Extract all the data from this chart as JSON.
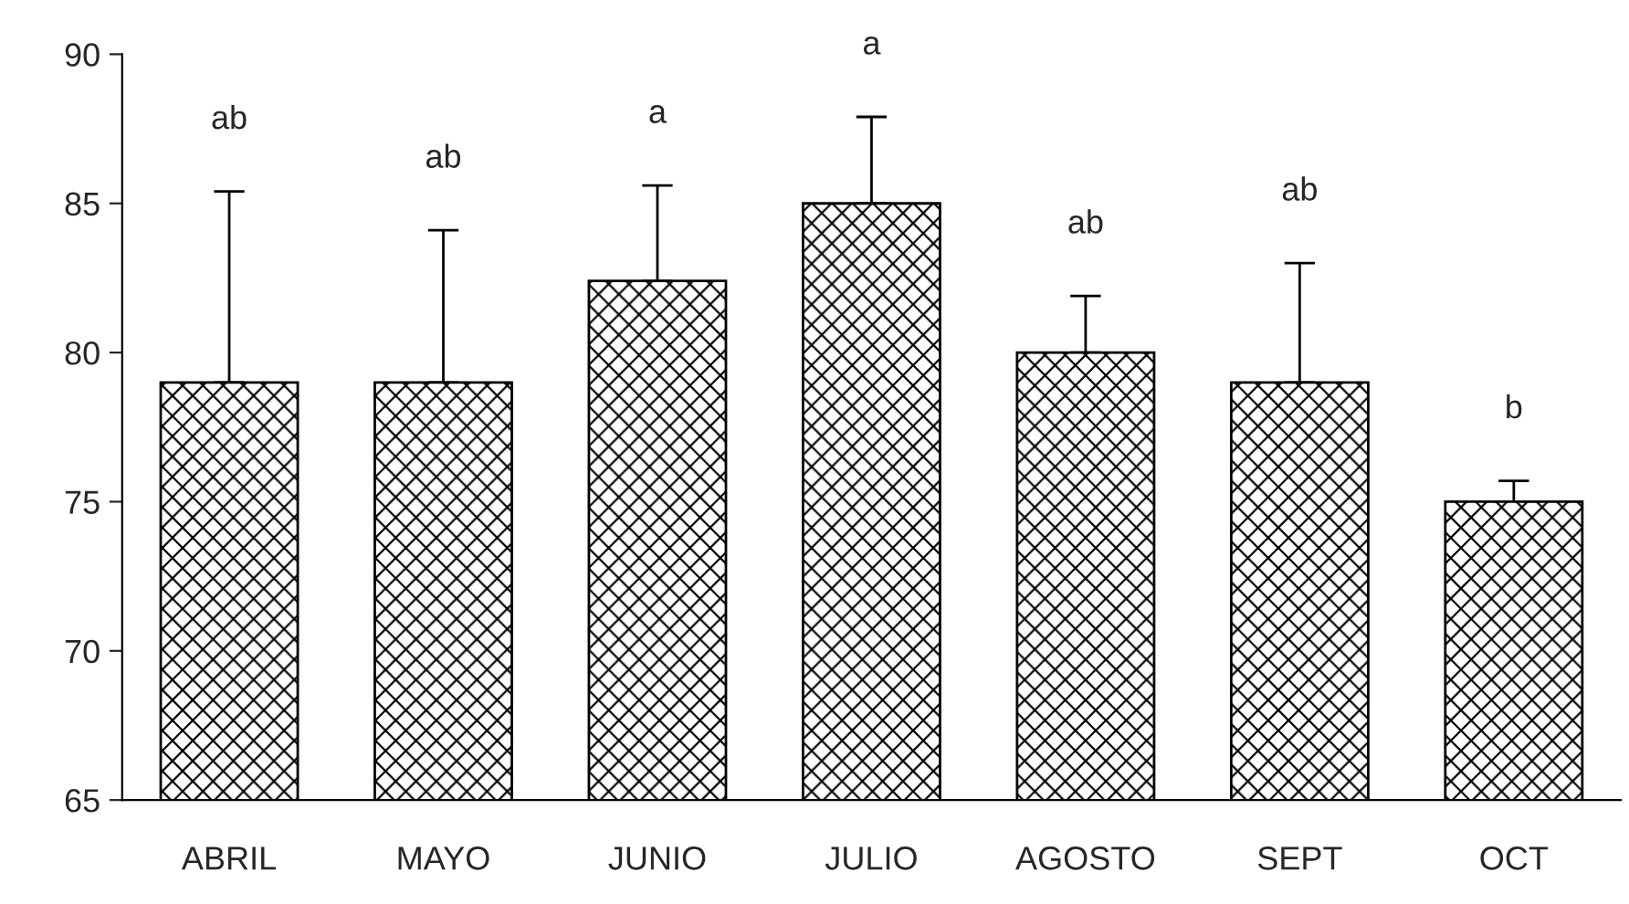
{
  "chart_data": {
    "type": "bar",
    "categories": [
      "ABRIL",
      "MAYO",
      "JUNIO",
      "JULIO",
      "AGOSTO",
      "SEPT",
      "OCT"
    ],
    "values": [
      79,
      79,
      82.4,
      85,
      80,
      79,
      75
    ],
    "errors": [
      [
        79,
        85.4
      ],
      [
        79,
        84.1
      ],
      [
        82.4,
        85.6
      ],
      [
        85,
        87.9
      ],
      [
        80,
        81.9
      ],
      [
        79,
        83
      ],
      [
        75,
        75.7
      ]
    ],
    "color": "#000000",
    "ylim": [
      65,
      90
    ],
    "yticks": [
      65,
      70,
      75,
      80,
      85,
      90
    ],
    "grid": false,
    "legend": false,
    "annotations": [
      "ab",
      "ab",
      "a",
      "a",
      "ab",
      "ab",
      "b"
    ]
  }
}
